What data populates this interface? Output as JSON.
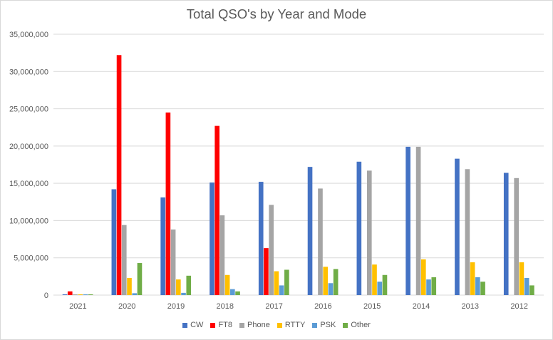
{
  "chart_data": {
    "type": "bar",
    "title": "Total  QSO's by  Year and Mode",
    "xlabel": "",
    "ylabel": "",
    "categories": [
      "2021",
      "2020",
      "2019",
      "2018",
      "2017",
      "2016",
      "2015",
      "2014",
      "2013",
      "2012"
    ],
    "ylim": [
      0,
      35000000
    ],
    "yticks": [
      "0",
      "5,000,000",
      "10,000,000",
      "15,000,000",
      "20,000,000",
      "25,000,000",
      "30,000,000",
      "35,000,000"
    ],
    "grid": true,
    "legend_position": "bottom",
    "series": [
      {
        "name": "CW",
        "color": "#4472c4",
        "values": [
          100000,
          14200000,
          13100000,
          15100000,
          15200000,
          17200000,
          17900000,
          19900000,
          18300000,
          16400000
        ]
      },
      {
        "name": "FT8",
        "color": "#ff0000",
        "values": [
          500000,
          32200000,
          24500000,
          22700000,
          6300000,
          0,
          0,
          0,
          0,
          0
        ]
      },
      {
        "name": "Phone",
        "color": "#a5a5a5",
        "values": [
          100000,
          9400000,
          8800000,
          10700000,
          12100000,
          14300000,
          16700000,
          19900000,
          16900000,
          15700000
        ]
      },
      {
        "name": "RTTY",
        "color": "#ffc000",
        "values": [
          100000,
          2300000,
          2100000,
          2700000,
          3200000,
          3800000,
          4100000,
          4800000,
          4400000,
          4400000
        ]
      },
      {
        "name": "PSK",
        "color": "#5b9bd5",
        "values": [
          100000,
          250000,
          300000,
          800000,
          1300000,
          1600000,
          1800000,
          2100000,
          2400000,
          2300000
        ]
      },
      {
        "name": "Other",
        "color": "#70ad47",
        "values": [
          100000,
          4300000,
          2600000,
          500000,
          3400000,
          3500000,
          2700000,
          2400000,
          1800000,
          1300000
        ]
      }
    ]
  }
}
